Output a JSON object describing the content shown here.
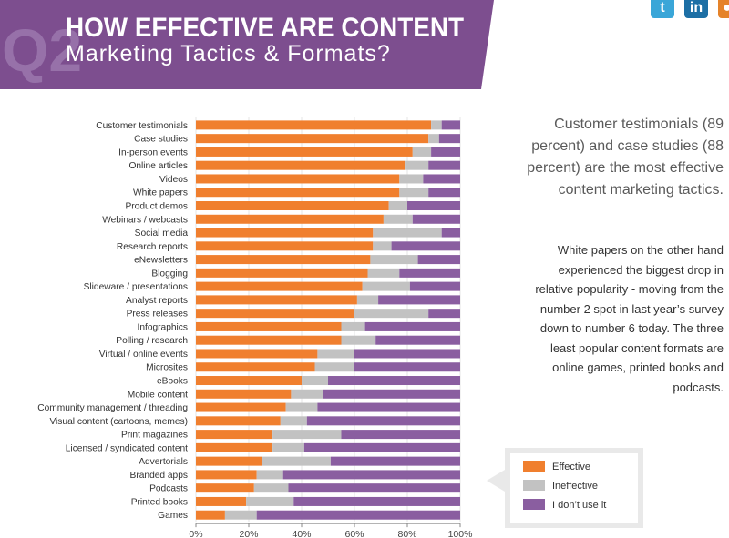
{
  "header": {
    "badge": "Q2",
    "title_line1": "HOW EFFECTIVE ARE CONTENT",
    "title_line2": "Marketing Tactics & Formats?"
  },
  "social": {
    "twitter_icon": "twitter-icon",
    "linkedin_icon": "linkedin-icon",
    "rss_icon": "rss-icon",
    "linkedin_glyph": "in"
  },
  "sidebar": {
    "lead": "Customer testimonials (89 percent) and case studies (88 percent) are the most effective content marketing tactics.",
    "body": "White papers on the other hand experienced the biggest drop in relative popularity - moving from the number 2 spot in last year’s survey down to number 6 today. The three least popular content formats are online games, printed books and podcasts."
  },
  "colors": {
    "banner": "#7d4e8f",
    "effective": "#f07f2e",
    "ineffective": "#c2c2c2",
    "dont_use": "#8a5ea0"
  },
  "chart_data": {
    "type": "bar",
    "orientation": "horizontal",
    "stacked": true,
    "categories": [
      "Customer testimonials",
      "Case studies",
      "In-person events",
      "Online articles",
      "Videos",
      "White papers",
      "Product demos",
      "Webinars / webcasts",
      "Social media",
      "Research reports",
      "eNewsletters",
      "Blogging",
      "Slideware / presentations",
      "Analyst reports",
      "Press releases",
      "Infographics",
      "Polling / research",
      "Virtual / online events",
      "Microsites",
      "eBooks",
      "Mobile content",
      "Community management / threading",
      "Visual content (cartoons, memes)",
      "Print magazines",
      "Licensed / syndicated content",
      "Advertorials",
      "Branded apps",
      "Podcasts",
      "Printed books",
      "Games"
    ],
    "series": [
      {
        "name": "Effective",
        "values": [
          89,
          88,
          82,
          79,
          77,
          77,
          73,
          71,
          67,
          67,
          66,
          65,
          63,
          61,
          60,
          55,
          55,
          46,
          45,
          40,
          36,
          34,
          32,
          29,
          29,
          25,
          23,
          22,
          19,
          11
        ]
      },
      {
        "name": "Ineffective",
        "values": [
          4,
          4,
          7,
          9,
          9,
          11,
          7,
          11,
          26,
          7,
          18,
          12,
          18,
          8,
          28,
          9,
          13,
          14,
          15,
          10,
          12,
          12,
          10,
          26,
          12,
          26,
          10,
          13,
          18,
          12
        ]
      },
      {
        "name": "I don’t use it",
        "values": [
          7,
          8,
          11,
          12,
          14,
          12,
          20,
          18,
          7,
          26,
          16,
          23,
          19,
          31,
          12,
          36,
          32,
          40,
          40,
          50,
          52,
          54,
          58,
          45,
          59,
          49,
          67,
          65,
          63,
          77
        ]
      }
    ],
    "xlim": [
      0,
      100
    ],
    "xticks": [
      "0%",
      "20%",
      "40%",
      "60%",
      "80%",
      "100%"
    ],
    "legend": [
      "Effective",
      "Ineffective",
      "I don’t use it"
    ],
    "legend_position": "bottom-right"
  }
}
